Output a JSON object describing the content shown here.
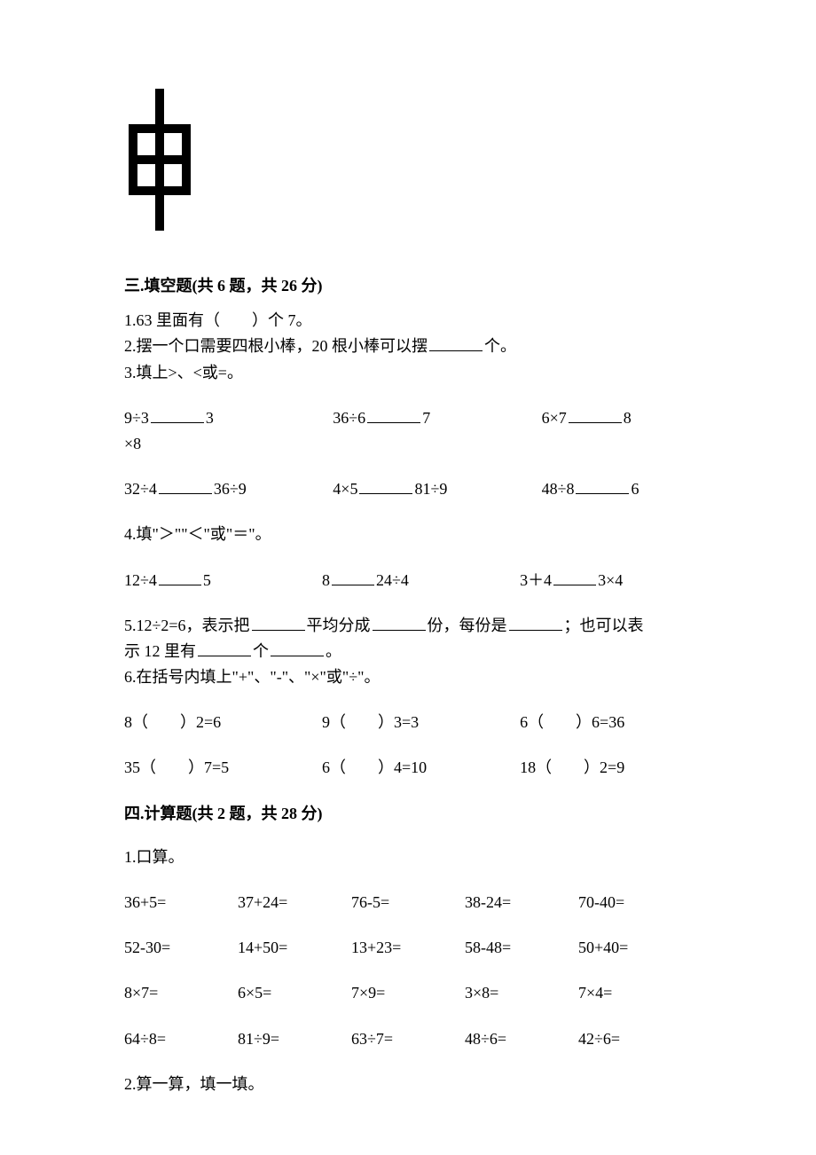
{
  "symbol": {
    "stroke_color": "#000000",
    "stroke_width": 10,
    "width": 80,
    "height": 160
  },
  "section3": {
    "heading": "三.填空题(共 6 题，共 26 分)",
    "q1": "1.63 里面有（　　）个 7。",
    "q2_a": "2.摆一个口需要四根小棒，20 根小棒可以摆",
    "q2_b": "个。",
    "q3": "3.填上>、<或=。",
    "q3_row1": {
      "a1": "9÷3",
      "a2": "3",
      "b1": "36÷6",
      "b2": "7",
      "c1": "6×7",
      "c2": "8"
    },
    "q3_row1_tail": "×8",
    "q3_row2": {
      "a1": "32÷4",
      "a2": "36÷9",
      "b1": "4×5",
      "b2": "81÷9",
      "c1": "48÷8",
      "c2": "6"
    },
    "q4": "4.填\"＞\"\"＜\"或\"＝\"。",
    "q4_row": {
      "a1": "12÷4",
      "a2": "5",
      "b1": "8",
      "b2": "24÷4",
      "c1": "3＋4",
      "c2": "3×4"
    },
    "q5_a": "5.12÷2=6，表示把",
    "q5_b": "平均分成",
    "q5_c": "份，每份是",
    "q5_d": "；也可以表",
    "q5_e": "示 12 里有",
    "q5_f": "个",
    "q5_g": "。",
    "q6": "6.在括号内填上\"+\"、\"-\"、\"×\"或\"÷\"。",
    "q6_row1": {
      "a": "8（　　）2=6",
      "b": "9（　　）3=3",
      "c": "6（　　）6=36"
    },
    "q6_row2": {
      "a": "35（　　）7=5",
      "b": "6（　　）4=10",
      "c": "18（　　）2=9"
    }
  },
  "section4": {
    "heading": "四.计算题(共 2 题，共 28 分)",
    "q1": "1.口算。",
    "calc_rows": [
      [
        "36+5=",
        "37+24=",
        "76-5=",
        "38-24=",
        "70-40="
      ],
      [
        "52-30=",
        "14+50=",
        "13+23=",
        "58-48=",
        "50+40="
      ],
      [
        "8×7=",
        "6×5=",
        "7×9=",
        "3×8=",
        "7×4="
      ],
      [
        "64÷8=",
        "81÷9=",
        "63÷7=",
        "48÷6=",
        "42÷6="
      ]
    ],
    "q2": "2.算一算，填一填。"
  }
}
